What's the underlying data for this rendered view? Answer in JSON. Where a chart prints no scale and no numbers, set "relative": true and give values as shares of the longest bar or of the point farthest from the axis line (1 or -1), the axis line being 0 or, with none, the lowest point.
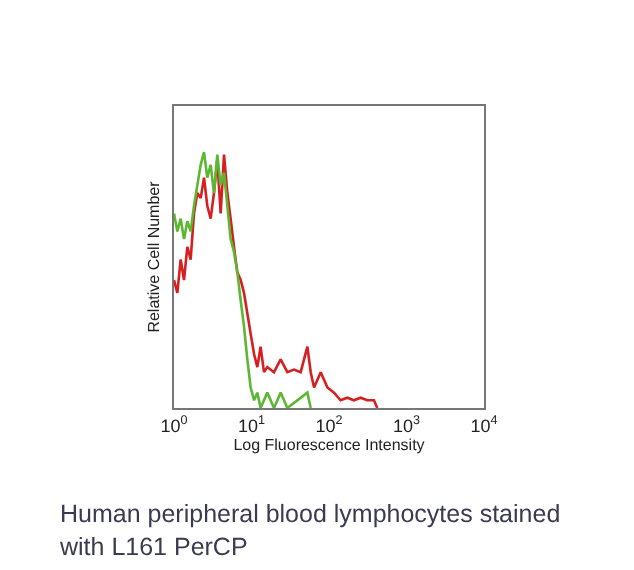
{
  "chart_data": {
    "type": "line",
    "relative": true,
    "log": "x",
    "xlabel": "Log Fluorescence Intensity",
    "ylabel": "Relative Cell Number",
    "xlim": [
      1,
      10000
    ],
    "xticks": [
      {
        "value": 1,
        "label": "10$^{0}$"
      },
      {
        "value": 10,
        "label": "10$^{1}$"
      },
      {
        "value": 100,
        "label": "10$^{2}$"
      },
      {
        "value": 1000,
        "label": "10$^{3}$"
      },
      {
        "value": 10000,
        "label": "10$^{4}$"
      }
    ],
    "marker": "none",
    "line_style": "solid",
    "annotations": [
      "Human peripheral blood lymphocytes stained with L161 PerCP"
    ],
    "series": [
      {
        "color": "#d42020",
        "x": [
          1,
          1.104,
          1.219,
          1.346,
          1.486,
          1.64,
          1.81,
          2.0,
          2.21,
          2.44,
          2.69,
          2.97,
          3.28,
          3.62,
          4.0,
          4.42,
          4.88,
          5.38,
          5.94,
          6.56,
          7.25,
          8.0,
          8.83,
          9.75,
          10.8,
          11.9,
          13.1,
          14.5,
          16.0,
          19.5,
          23.8,
          29.0,
          35.4,
          43.1,
          52.6,
          58.1,
          64.1,
          78.2,
          95.4,
          116,
          141,
          172,
          210,
          256,
          312,
          380,
          420
        ],
        "values": [
          0.5,
          0.45,
          0.58,
          0.5,
          0.63,
          0.58,
          0.76,
          0.84,
          0.82,
          0.9,
          0.79,
          0.74,
          0.84,
          0.97,
          0.76,
          0.99,
          0.84,
          0.74,
          0.63,
          0.53,
          0.5,
          0.45,
          0.37,
          0.29,
          0.21,
          0.16,
          0.24,
          0.14,
          0.16,
          0.14,
          0.19,
          0.14,
          0.15,
          0.14,
          0.24,
          0.14,
          0.08,
          0.14,
          0.08,
          0.06,
          0.03,
          0.04,
          0.03,
          0.04,
          0.03,
          0.03,
          0
        ]
      },
      {
        "color": "#5cb832",
        "x": [
          1,
          1.104,
          1.219,
          1.346,
          1.486,
          1.64,
          1.81,
          2.0,
          2.21,
          2.44,
          2.69,
          2.97,
          3.28,
          3.62,
          4.0,
          4.42,
          4.88,
          5.38,
          5.94,
          6.56,
          7.25,
          8.0,
          8.83,
          9.75,
          10.8,
          11.9,
          13.1,
          16.0,
          19.5,
          23.8,
          29.0,
          52.6,
          58.1
        ],
        "values": [
          0.76,
          0.69,
          0.74,
          0.66,
          0.73,
          0.69,
          0.79,
          0.87,
          0.95,
          1.0,
          0.9,
          0.95,
          0.84,
          0.99,
          0.87,
          0.92,
          0.79,
          0.66,
          0.61,
          0.53,
          0.42,
          0.32,
          0.19,
          0.08,
          0.03,
          0.06,
          0,
          0.06,
          0,
          0.06,
          0,
          0.06,
          0
        ]
      }
    ]
  }
}
